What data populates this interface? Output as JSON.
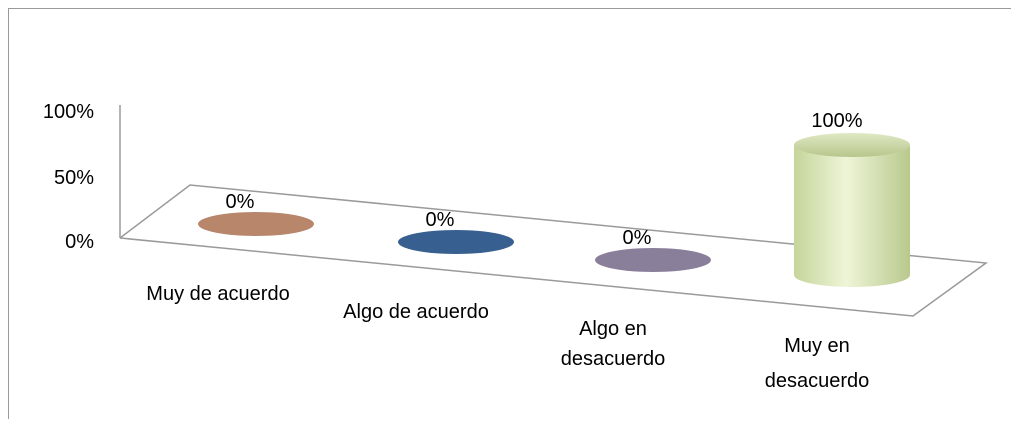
{
  "chart_data": {
    "type": "bar",
    "style": "3d-cylinder",
    "categories": [
      "Muy de acuerdo",
      "Algo de acuerdo",
      "Algo en desacuerdo",
      "Muy en desacuerdo"
    ],
    "values": [
      0,
      0,
      0,
      100
    ],
    "data_labels": [
      "0%",
      "0%",
      "0%",
      "100%"
    ],
    "y_ticks": [
      "100%",
      "50%",
      "0%"
    ],
    "ylim": [
      0,
      100
    ],
    "colors": [
      "#b8866a",
      "#375f8f",
      "#8a7f9b",
      "#d3e0b0"
    ],
    "title": "",
    "xlabel": "",
    "ylabel": "",
    "legend": false,
    "grid": false
  }
}
